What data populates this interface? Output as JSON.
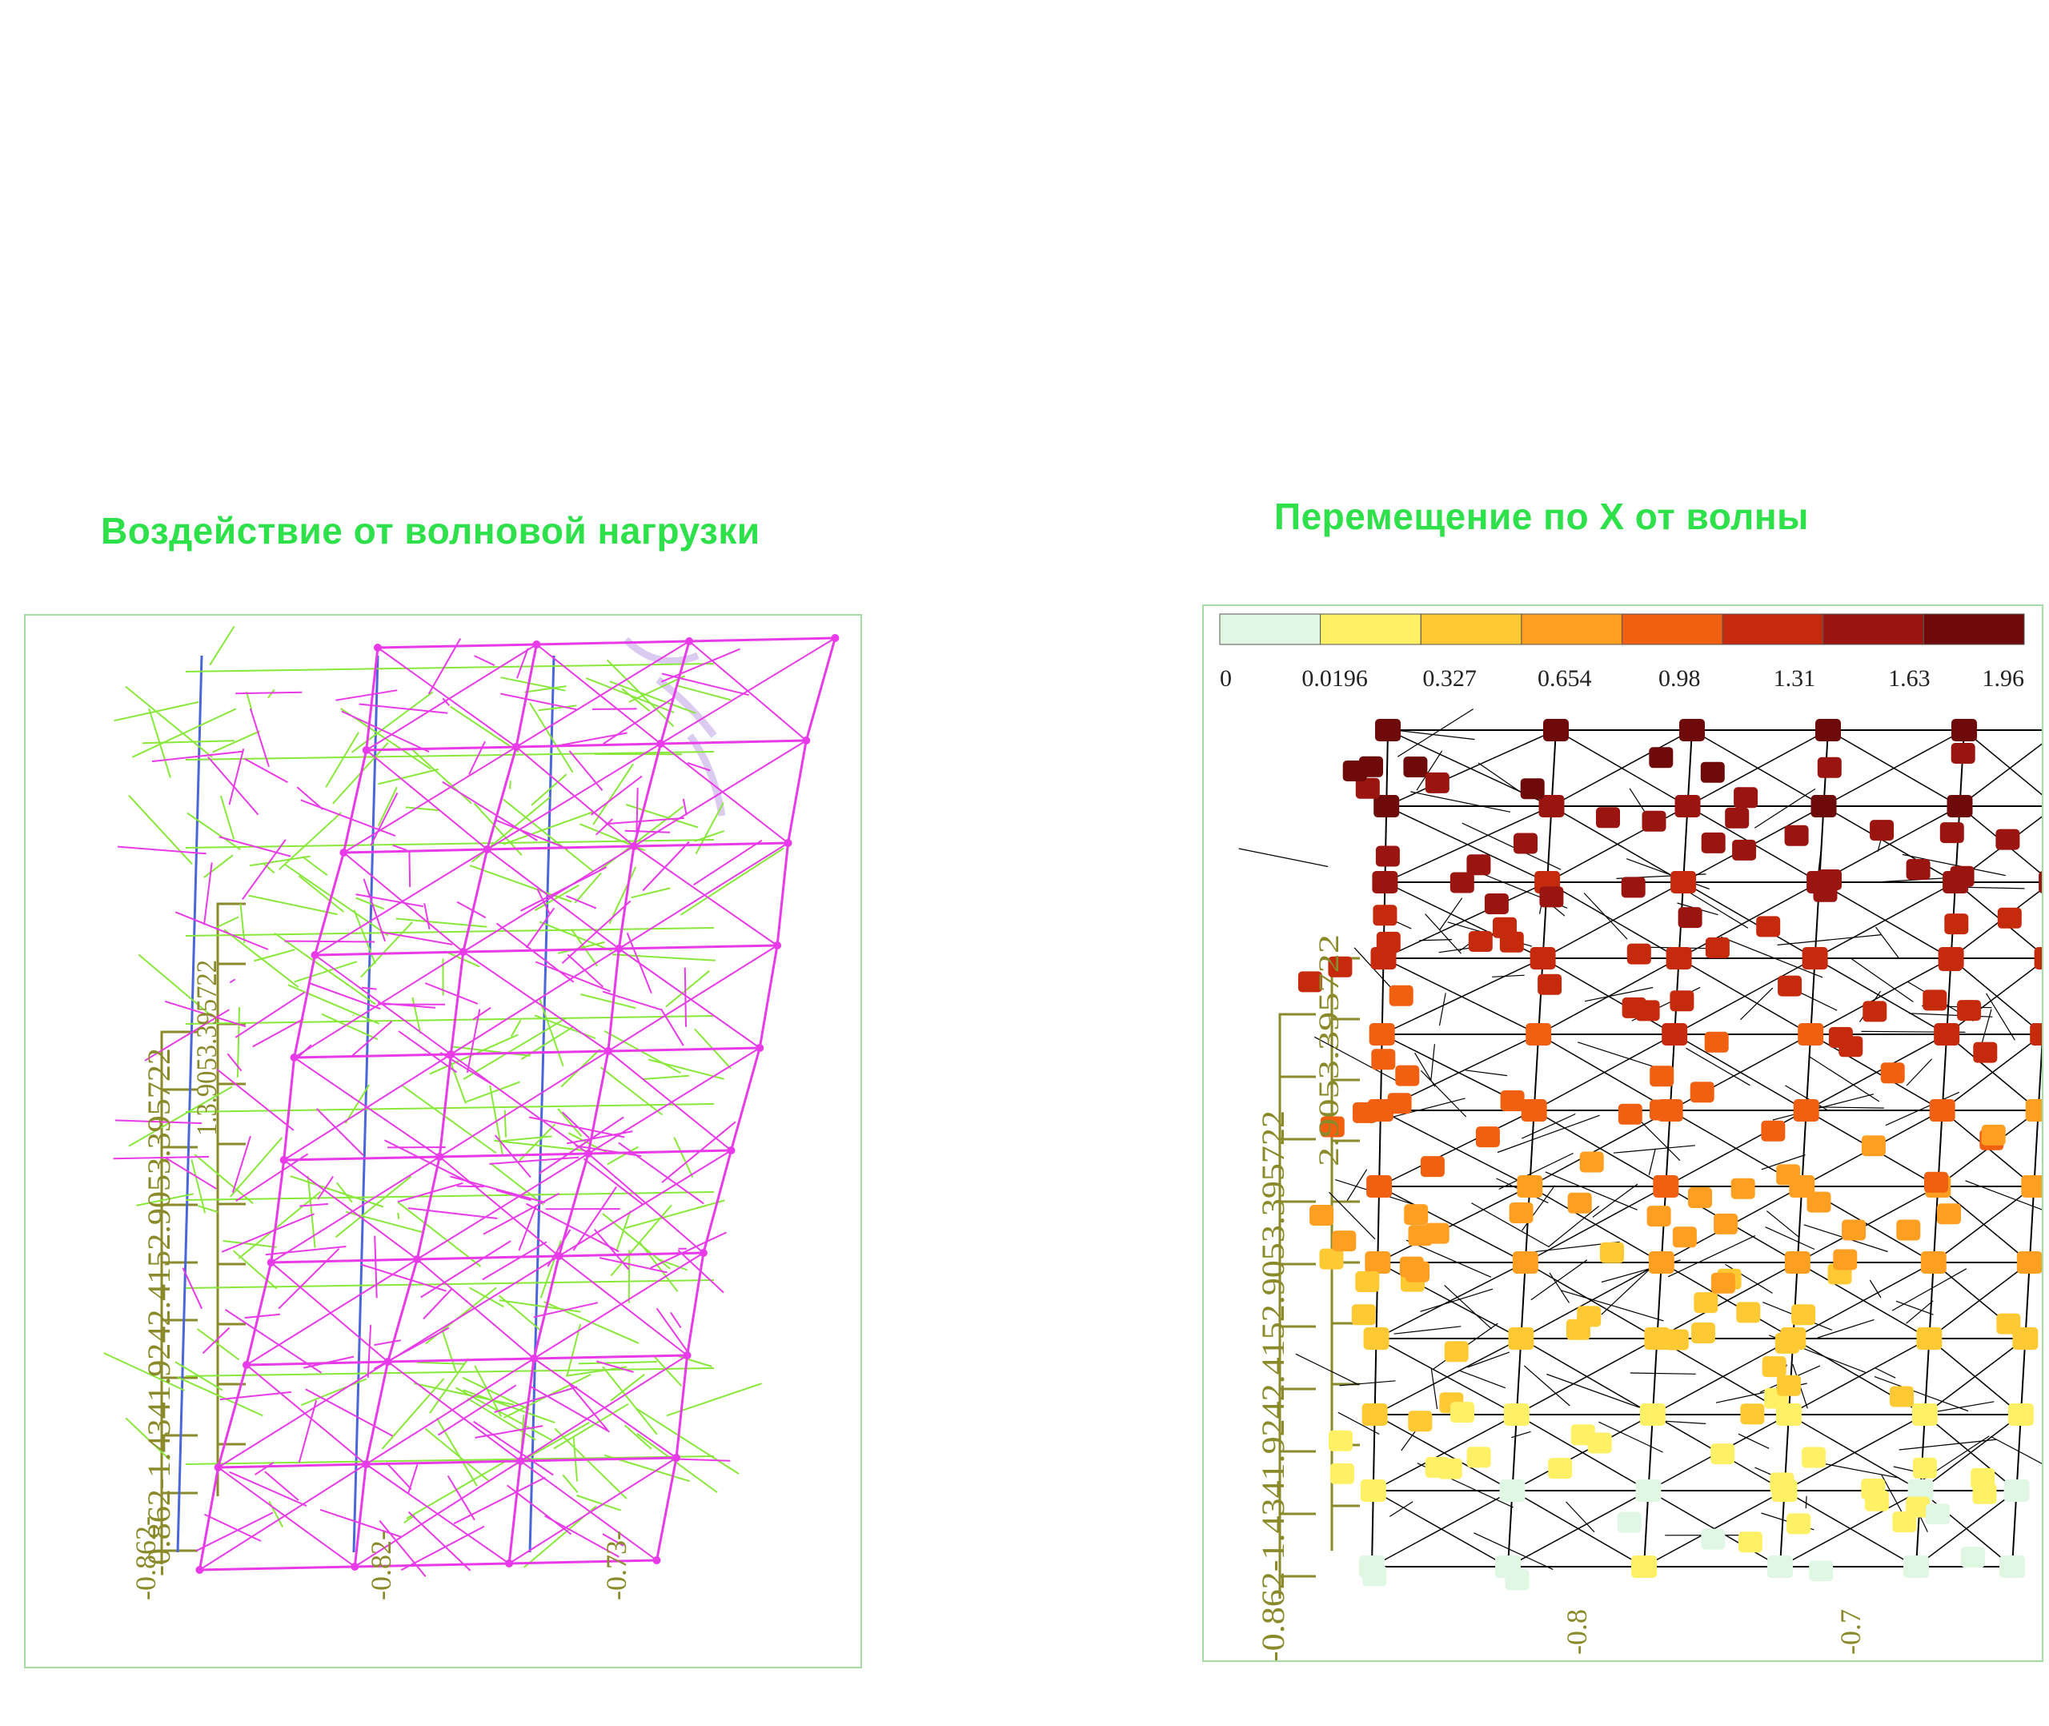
{
  "left_figure": {
    "title": "Воздействие от волновой нагрузки",
    "axis_vertical_label": "-0.862-1.4341.9242.4152.9053.395722",
    "axis_inner_label": "1.3.9053.395722",
    "axis_bottom_labels": [
      "-0.862-",
      "-0.82-",
      "-0.73-"
    ],
    "colors": {
      "deformed": "#e83ae8",
      "original": "#88e83a",
      "column": "#4a66d8",
      "axis": "#8a8a2a",
      "title": "#2ee04a"
    }
  },
  "right_figure": {
    "title": "Перемещение по X от волны",
    "colorbar": {
      "ticks": [
        "0",
        "0.0196",
        "0.327",
        "0.654",
        "0.98",
        "1.31",
        "1.63",
        "1.96"
      ],
      "colors": [
        "#dff7e3",
        "#fff066",
        "#ffc933",
        "#ff9f22",
        "#f06010",
        "#c62a0c",
        "#9a1410",
        "#6e0a0a"
      ]
    },
    "axis_vertical_label": "-0.862-1.4341.9242.4152.9053.395722",
    "axis_inner_label": "2.9053.395722",
    "axis_bottom_labels": [
      "-0.8",
      "-0.7"
    ]
  }
}
